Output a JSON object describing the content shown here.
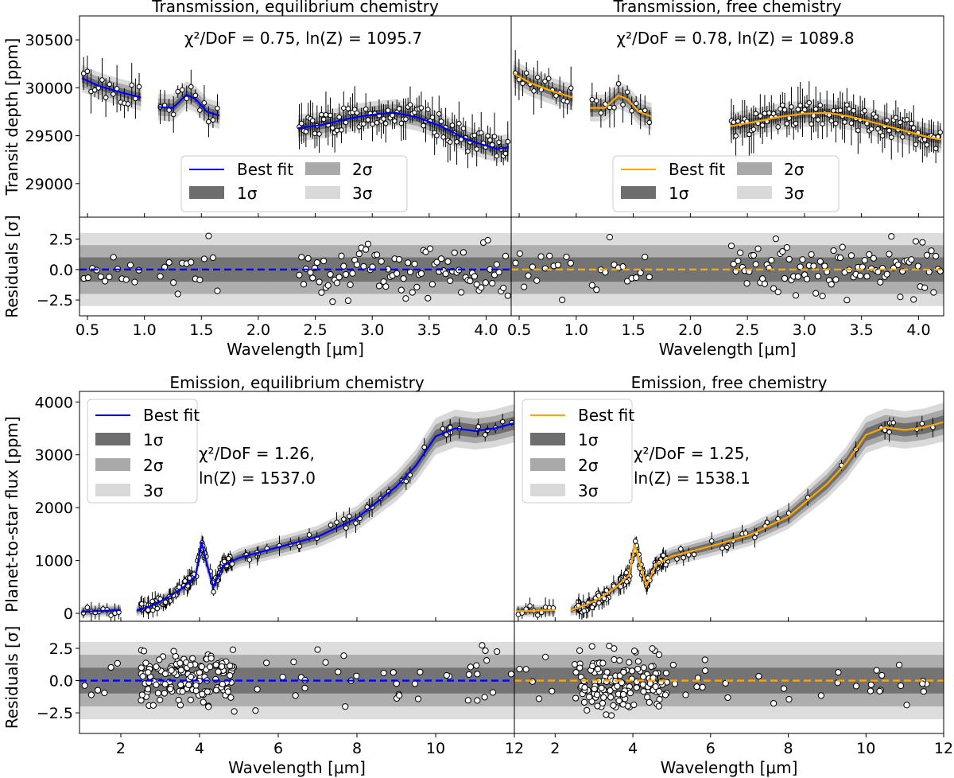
{
  "figure": {
    "colors": {
      "eq": "#0000ff",
      "free": "#ffa500",
      "s1": "#6e6e6e",
      "s2": "#a9a9a9",
      "s3": "#d9d9d9"
    }
  },
  "legend": {
    "best_fit": "Best fit",
    "sigma_labels": [
      "1σ",
      "2σ",
      "3σ"
    ]
  },
  "chart_data": [
    {
      "type": "line",
      "id": "trans-eq",
      "title": "Transmission, equilibrium chemistry",
      "model": "eq",
      "stat_line1": "χ²/DoF = 0.75, ln(Z) = 1095.7",
      "stat_line2": "",
      "ylabel": "Transit depth [ppm]",
      "xlim": [
        0.43,
        4.22
      ],
      "ylim": [
        28650,
        30750
      ],
      "yticks": [
        29000,
        29500,
        30000,
        30500
      ],
      "segments": [
        {
          "x": [
            0.45,
            0.6,
            0.8,
            0.97
          ],
          "y": [
            30100,
            30020,
            29950,
            29900
          ]
        },
        {
          "x": [
            1.12,
            1.25,
            1.37,
            1.45,
            1.55,
            1.66
          ],
          "y": [
            29800,
            29790,
            29930,
            29880,
            29750,
            29710
          ]
        },
        {
          "x": [
            2.35,
            2.55,
            2.8,
            3.0,
            3.2,
            3.4,
            3.6,
            3.85,
            4.1,
            4.2
          ],
          "y": [
            29580,
            29610,
            29680,
            29720,
            29740,
            29690,
            29600,
            29450,
            29360,
            29380
          ]
        }
      ],
      "residuals": {
        "ylabel": "Residuals [σ]",
        "xlabel": "Wavelength [μm]",
        "xticks": [
          0.5,
          1.0,
          1.5,
          2.0,
          2.5,
          3.0,
          3.5,
          4.0
        ],
        "xtick_labels": [
          "0.5",
          "1.0",
          "1.5",
          "2.0",
          "2.5",
          "3.0",
          "3.5",
          "4.0"
        ],
        "ylim": [
          -3.8,
          4.3
        ],
        "yticks": [
          -2.5,
          0.0,
          2.5
        ],
        "ytick_labels": [
          "−2.5",
          "0.0",
          "2.5"
        ]
      }
    },
    {
      "type": "line",
      "id": "trans-free",
      "title": "Transmission, free chemistry",
      "model": "free",
      "stat_line1": "χ²/DoF = 0.78, ln(Z) = 1089.8",
      "stat_line2": "",
      "ylabel": "",
      "xlim": [
        0.43,
        4.22
      ],
      "ylim": [
        28650,
        30750
      ],
      "yticks": [],
      "segments": [
        {
          "x": [
            0.45,
            0.6,
            0.8,
            0.97
          ],
          "y": [
            30150,
            30050,
            29960,
            29900
          ]
        },
        {
          "x": [
            1.12,
            1.25,
            1.37,
            1.45,
            1.55,
            1.66
          ],
          "y": [
            29790,
            29790,
            29920,
            29880,
            29750,
            29700
          ]
        },
        {
          "x": [
            2.35,
            2.55,
            2.8,
            3.0,
            3.2,
            3.4,
            3.6,
            3.85,
            4.1,
            4.2
          ],
          "y": [
            29600,
            29640,
            29700,
            29730,
            29740,
            29700,
            29640,
            29560,
            29480,
            29460
          ]
        }
      ],
      "residuals": {
        "ylabel": "",
        "xlabel": "Wavelength [μm]",
        "xticks": [
          0.5,
          1.0,
          1.5,
          2.0,
          2.5,
          3.0,
          3.5,
          4.0
        ],
        "xtick_labels": [
          "0.5",
          "1.0",
          "1.5",
          "2.0",
          "2.5",
          "3.0",
          "3.5",
          "4.0"
        ],
        "ylim": [
          -3.8,
          4.3
        ],
        "yticks": [],
        "ytick_labels": []
      }
    },
    {
      "type": "line",
      "id": "emis-eq",
      "title": "Emission, equilibrium chemistry",
      "model": "eq",
      "stat_line1": "χ²/DoF = 1.26,",
      "stat_line2": "ln(Z) = 1537.0",
      "ylabel": "Planet-to-star flux [ppm]",
      "xlim": [
        0.95,
        12.0
      ],
      "ylim": [
        -150,
        4200
      ],
      "yticks": [
        0,
        1000,
        2000,
        3000,
        4000
      ],
      "segments": [
        {
          "x": [
            1.0,
            1.3,
            1.6,
            2.0
          ],
          "y": [
            30,
            40,
            50,
            60
          ]
        },
        {
          "x": [
            2.4,
            2.8,
            3.2,
            3.6,
            3.9,
            4.05,
            4.2,
            4.35,
            4.6,
            5.0,
            6.0,
            7.0,
            8.0,
            9.0,
            9.5,
            10.0,
            10.5,
            11.0,
            11.5,
            12.0
          ],
          "y": [
            50,
            150,
            300,
            500,
            700,
            1350,
            900,
            500,
            900,
            1050,
            1250,
            1450,
            1800,
            2400,
            2800,
            3350,
            3500,
            3450,
            3500,
            3600
          ]
        }
      ],
      "residuals": {
        "ylabel": "Residuals [σ]",
        "xlabel": "Wavelength [μm]",
        "xticks": [
          2,
          4,
          6,
          8,
          10,
          12
        ],
        "xtick_labels": [
          "2",
          "4",
          "6",
          "8",
          "10",
          "12"
        ],
        "ylim": [
          -4.1,
          4.6
        ],
        "yticks": [
          -2.5,
          0.0,
          2.5
        ],
        "ytick_labels": [
          "−2.5",
          "0.0",
          "2.5"
        ]
      }
    },
    {
      "type": "line",
      "id": "emis-free",
      "title": "Emission, free chemistry",
      "model": "free",
      "stat_line1": "χ²/DoF = 1.25,",
      "stat_line2": "ln(Z) = 1538.1",
      "ylabel": "",
      "xlim": [
        0.95,
        12.0
      ],
      "ylim": [
        -150,
        4200
      ],
      "yticks": [],
      "segments": [
        {
          "x": [
            1.0,
            1.3,
            1.6,
            2.0
          ],
          "y": [
            40,
            45,
            55,
            60
          ]
        },
        {
          "x": [
            2.4,
            2.8,
            3.2,
            3.6,
            3.9,
            4.05,
            4.2,
            4.35,
            4.6,
            5.0,
            6.0,
            7.0,
            8.0,
            9.0,
            9.5,
            10.0,
            10.5,
            11.0,
            11.5,
            12.0
          ],
          "y": [
            60,
            160,
            310,
            520,
            720,
            1300,
            900,
            520,
            930,
            1080,
            1270,
            1480,
            1830,
            2450,
            2850,
            3380,
            3520,
            3470,
            3520,
            3620
          ]
        }
      ],
      "residuals": {
        "ylabel": "",
        "xlabel": "Wavelength [μm]",
        "xticks": [
          2,
          4,
          6,
          8,
          10,
          12
        ],
        "xtick_labels": [
          "2",
          "4",
          "6",
          "8",
          "10",
          "12"
        ],
        "ylim": [
          -4.1,
          4.6
        ],
        "yticks": [],
        "ytick_labels": []
      }
    }
  ]
}
